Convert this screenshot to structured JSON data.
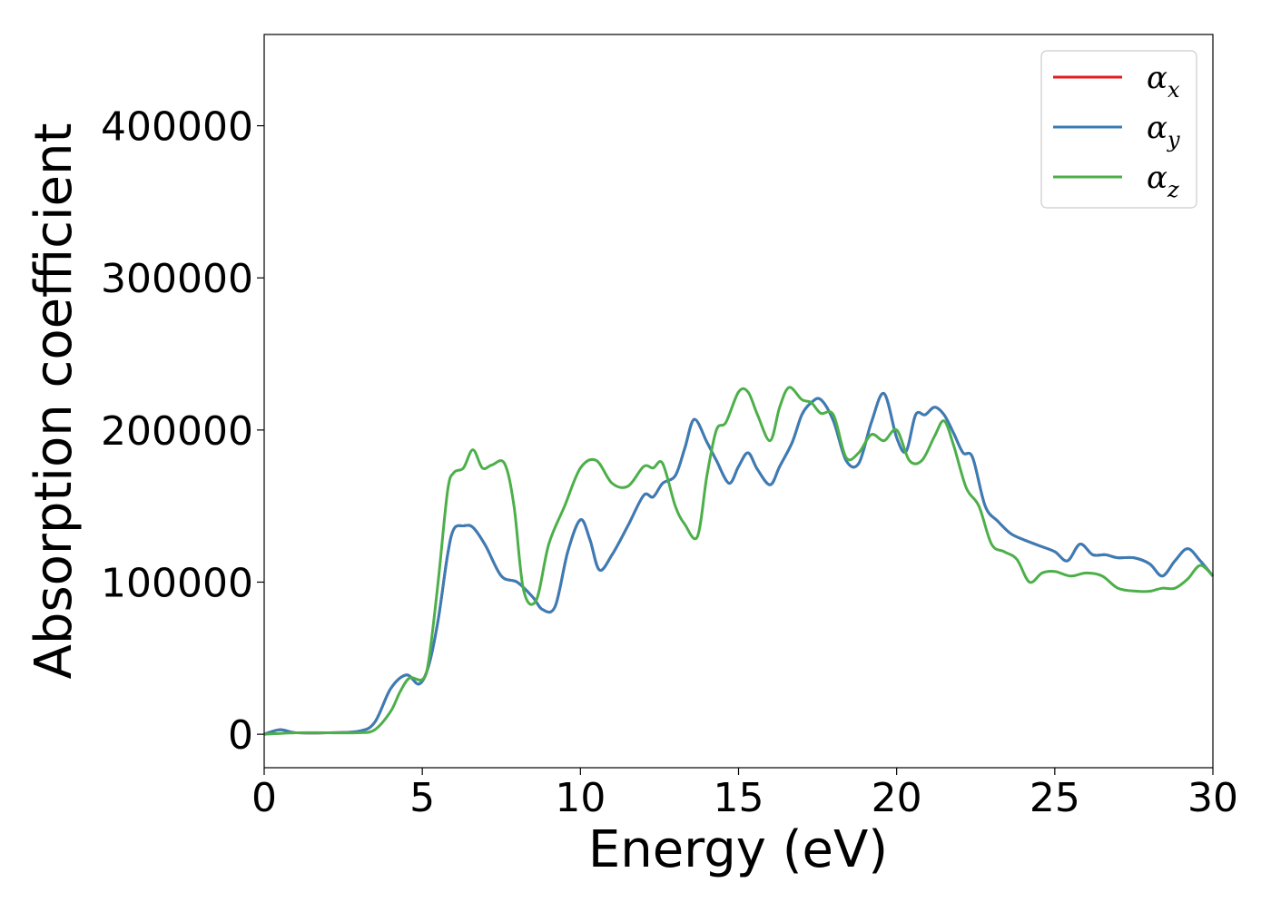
{
  "chart_data": {
    "type": "line",
    "title": "",
    "xlabel": "Energy (eV)",
    "ylabel": "Absorption coefficient",
    "xlim": [
      0,
      30
    ],
    "ylim": [
      -22000,
      460000
    ],
    "xticks": [
      0,
      5,
      10,
      15,
      20,
      25,
      30
    ],
    "xtick_labels": [
      "0",
      "5",
      "10",
      "15",
      "20",
      "25",
      "30"
    ],
    "yticks": [
      0,
      100000,
      200000,
      300000,
      400000
    ],
    "ytick_labels": [
      "0",
      "100000",
      "200000",
      "300000",
      "400000"
    ],
    "grid": false,
    "legend_position": "top-right",
    "series": [
      {
        "name": "α_x",
        "legend_base": "α",
        "legend_sub": "x",
        "color": "#e41a1c",
        "x": [
          0,
          0.5,
          1,
          2,
          3,
          3.5,
          4,
          4.5,
          4.9,
          5.2,
          5.5,
          5.8,
          6.0,
          6.3,
          6.6,
          7.0,
          7.5,
          8.0,
          8.5,
          8.8,
          9.2,
          9.6,
          10.0,
          10.3,
          10.6,
          11.0,
          11.5,
          12.0,
          12.3,
          12.6,
          13.0,
          13.3,
          13.6,
          14.0,
          14.3,
          14.7,
          15.0,
          15.3,
          15.6,
          16.0,
          16.3,
          16.7,
          17.0,
          17.3,
          17.6,
          18.0,
          18.4,
          18.8,
          19.2,
          19.6,
          20.0,
          20.3,
          20.6,
          20.9,
          21.2,
          21.5,
          21.8,
          22.1,
          22.4,
          22.8,
          23.2,
          23.6,
          24.0,
          24.5,
          25.0,
          25.4,
          25.8,
          26.2,
          26.6,
          27.0,
          27.5,
          28.0,
          28.4,
          28.8,
          29.2,
          29.6,
          30.0
        ],
        "values": [
          0,
          3000,
          1000,
          1000,
          2000,
          8000,
          30000,
          39000,
          33000,
          45000,
          75000,
          118000,
          135000,
          137000,
          136000,
          124000,
          104000,
          100000,
          90000,
          82000,
          84000,
          120000,
          141000,
          128000,
          108000,
          118000,
          137000,
          157000,
          156000,
          165000,
          170000,
          188000,
          207000,
          192000,
          180000,
          165000,
          176000,
          185000,
          174000,
          164000,
          176000,
          192000,
          210000,
          218000,
          220000,
          206000,
          180000,
          178000,
          205000,
          224000,
          195000,
          186000,
          210000,
          210000,
          215000,
          210000,
          198000,
          185000,
          182000,
          150000,
          140000,
          132000,
          128000,
          124000,
          120000,
          114000,
          125000,
          118000,
          118000,
          116000,
          116000,
          112000,
          104000,
          114000,
          122000,
          114000,
          104000
        ]
      },
      {
        "name": "α_y",
        "legend_base": "α",
        "legend_sub": "y",
        "color": "#377eb8",
        "x": [
          0,
          0.5,
          1,
          2,
          3,
          3.5,
          4,
          4.5,
          4.9,
          5.2,
          5.5,
          5.8,
          6.0,
          6.3,
          6.6,
          7.0,
          7.5,
          8.0,
          8.5,
          8.8,
          9.2,
          9.6,
          10.0,
          10.3,
          10.6,
          11.0,
          11.5,
          12.0,
          12.3,
          12.6,
          13.0,
          13.3,
          13.6,
          14.0,
          14.3,
          14.7,
          15.0,
          15.3,
          15.6,
          16.0,
          16.3,
          16.7,
          17.0,
          17.3,
          17.6,
          18.0,
          18.4,
          18.8,
          19.2,
          19.6,
          20.0,
          20.3,
          20.6,
          20.9,
          21.2,
          21.5,
          21.8,
          22.1,
          22.4,
          22.8,
          23.2,
          23.6,
          24.0,
          24.5,
          25.0,
          25.4,
          25.8,
          26.2,
          26.6,
          27.0,
          27.5,
          28.0,
          28.4,
          28.8,
          29.2,
          29.6,
          30.0
        ],
        "values": [
          0,
          3000,
          1000,
          1000,
          2000,
          8000,
          30000,
          39000,
          33000,
          45000,
          75000,
          118000,
          135000,
          137000,
          136000,
          124000,
          104000,
          100000,
          90000,
          82000,
          84000,
          120000,
          141000,
          128000,
          108000,
          118000,
          137000,
          157000,
          156000,
          165000,
          170000,
          188000,
          207000,
          192000,
          180000,
          165000,
          176000,
          185000,
          174000,
          164000,
          176000,
          192000,
          210000,
          218000,
          220000,
          206000,
          180000,
          178000,
          205000,
          224000,
          195000,
          186000,
          210000,
          210000,
          215000,
          210000,
          198000,
          185000,
          182000,
          150000,
          140000,
          132000,
          128000,
          124000,
          120000,
          114000,
          125000,
          118000,
          118000,
          116000,
          116000,
          112000,
          104000,
          114000,
          122000,
          114000,
          104000
        ]
      },
      {
        "name": "α_z",
        "legend_base": "α",
        "legend_sub": "z",
        "color": "#4daf4a",
        "x": [
          0,
          1,
          2,
          3,
          3.5,
          4,
          4.3,
          4.6,
          5.0,
          5.2,
          5.5,
          5.8,
          6.0,
          6.3,
          6.6,
          6.9,
          7.2,
          7.6,
          7.9,
          8.2,
          8.6,
          9.0,
          9.5,
          10.0,
          10.5,
          11.0,
          11.5,
          12.0,
          12.3,
          12.6,
          13.0,
          13.3,
          13.7,
          14.0,
          14.3,
          14.6,
          15.0,
          15.3,
          15.6,
          16.0,
          16.3,
          16.6,
          17.0,
          17.3,
          17.6,
          18.0,
          18.4,
          18.8,
          19.2,
          19.6,
          20.0,
          20.4,
          20.8,
          21.2,
          21.5,
          21.8,
          22.2,
          22.6,
          23.0,
          23.4,
          23.8,
          24.2,
          24.6,
          25.0,
          25.5,
          26.0,
          26.5,
          27.0,
          27.6,
          28.0,
          28.4,
          28.8,
          29.2,
          29.6,
          30.0
        ],
        "values": [
          0,
          1000,
          1000,
          1000,
          3000,
          15000,
          28000,
          37000,
          36000,
          48000,
          100000,
          160000,
          172000,
          175000,
          187000,
          175000,
          177000,
          178000,
          150000,
          95000,
          88000,
          125000,
          150000,
          175000,
          180000,
          165000,
          163000,
          176000,
          175000,
          178000,
          150000,
          138000,
          130000,
          170000,
          200000,
          205000,
          225000,
          225000,
          210000,
          193000,
          215000,
          228000,
          220000,
          218000,
          211000,
          210000,
          182000,
          185000,
          197000,
          193000,
          200000,
          180000,
          180000,
          196000,
          206000,
          190000,
          162000,
          150000,
          125000,
          120000,
          115000,
          100000,
          106000,
          107000,
          104000,
          106000,
          104000,
          96000,
          94000,
          94000,
          96000,
          96000,
          102000,
          111000,
          104000
        ]
      }
    ]
  }
}
